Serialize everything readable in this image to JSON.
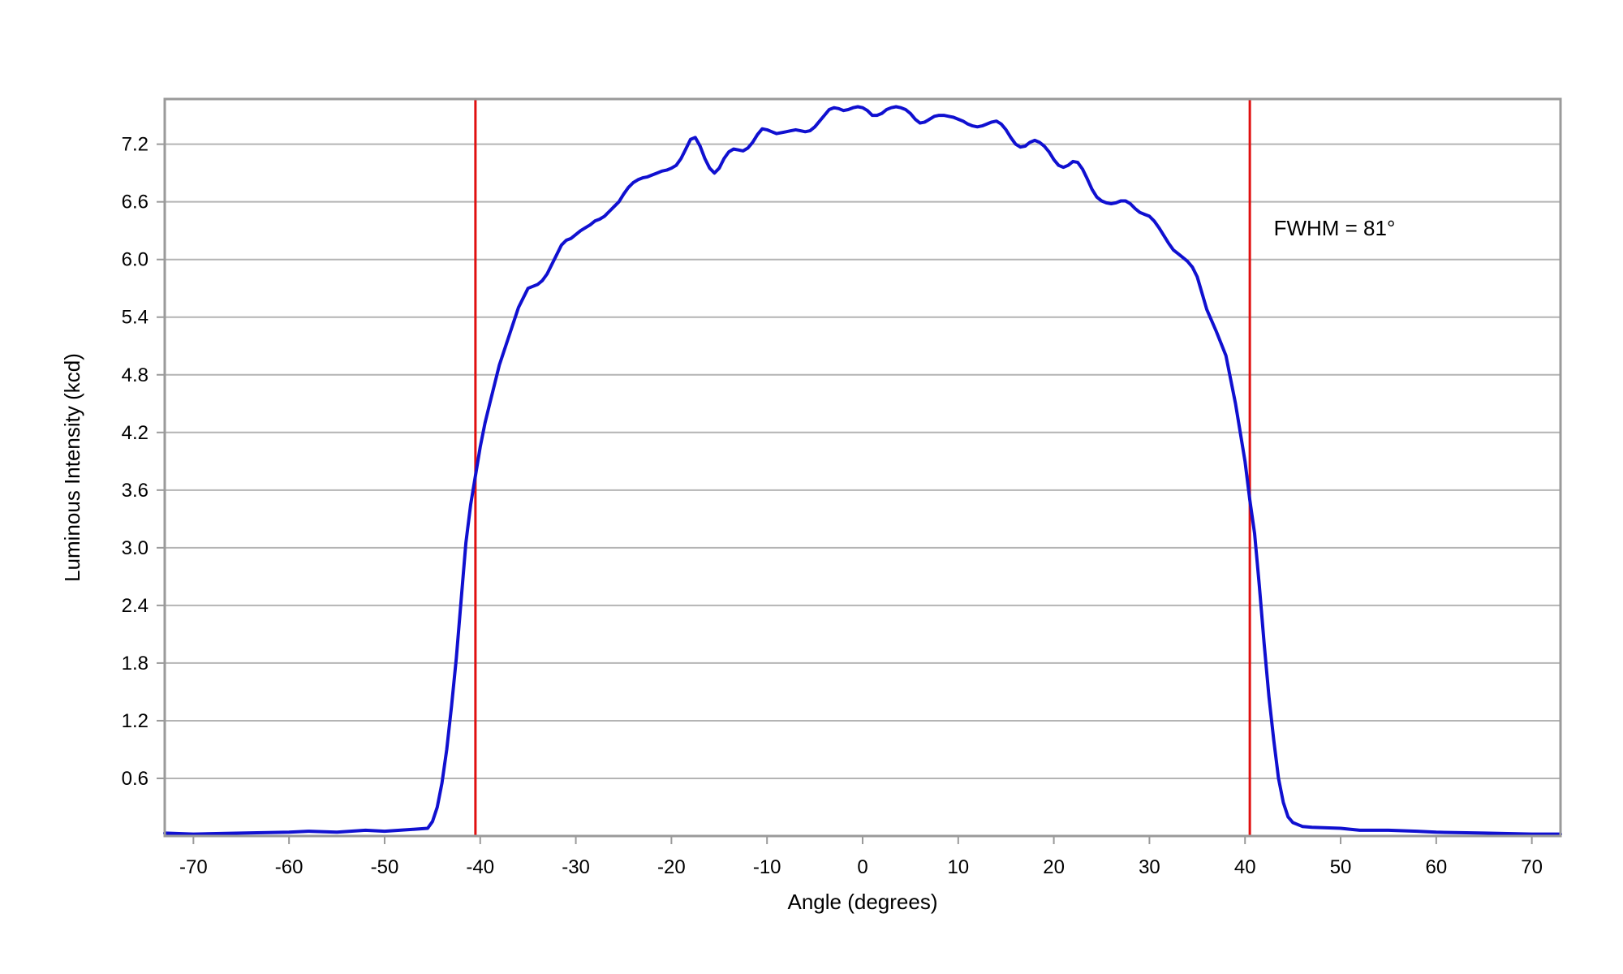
{
  "chart_data": {
    "type": "line",
    "title": "",
    "xlabel": "Angle (degrees)",
    "ylabel": "Luminous Intensity (kcd)",
    "xlim": [
      -73,
      73
    ],
    "ylim": [
      0,
      7.67
    ],
    "grid": true,
    "legend": "none",
    "x_ticks": [
      {
        "value": -70,
        "label": "-70"
      },
      {
        "value": -60,
        "label": "-60"
      },
      {
        "value": -50,
        "label": "-50"
      },
      {
        "value": -40,
        "label": "-40"
      },
      {
        "value": -30,
        "label": "-30"
      },
      {
        "value": -20,
        "label": "-20"
      },
      {
        "value": -10,
        "label": "-10"
      },
      {
        "value": 0,
        "label": "0"
      },
      {
        "value": 10,
        "label": "10"
      },
      {
        "value": 20,
        "label": "20"
      },
      {
        "value": 30,
        "label": "30"
      },
      {
        "value": 40,
        "label": "40"
      },
      {
        "value": 50,
        "label": "50"
      },
      {
        "value": 60,
        "label": "60"
      },
      {
        "value": 70,
        "label": "70"
      }
    ],
    "y_ticks": [
      {
        "value": 0.6,
        "label": "0.6"
      },
      {
        "value": 1.2,
        "label": "1.2"
      },
      {
        "value": 1.8,
        "label": "1.8"
      },
      {
        "value": 2.4,
        "label": "2.4"
      },
      {
        "value": 3.0,
        "label": "3.0"
      },
      {
        "value": 3.6,
        "label": "3.6"
      },
      {
        "value": 4.2,
        "label": "4.2"
      },
      {
        "value": 4.8,
        "label": "4.8"
      },
      {
        "value": 5.4,
        "label": "5.4"
      },
      {
        "value": 6.0,
        "label": "6.0"
      },
      {
        "value": 6.6,
        "label": "6.6"
      },
      {
        "value": 7.2,
        "label": "7.2"
      }
    ],
    "series": [
      {
        "color": "#1010d0",
        "x": [
          -73,
          -70,
          -65,
          -60,
          -58,
          -55,
          -52,
          -50,
          -47,
          -45.5,
          -45,
          -44.5,
          -44,
          -43.5,
          -43,
          -42.5,
          -42,
          -41.5,
          -41,
          -40.5,
          -40,
          -39.5,
          -39,
          -38,
          -37,
          -36,
          -35,
          -34.5,
          -34,
          -33.5,
          -33,
          -32.5,
          -32,
          -31.5,
          -31,
          -30.5,
          -30,
          -29.5,
          -29,
          -28.5,
          -28,
          -27.5,
          -27,
          -26.5,
          -26,
          -25.5,
          -25,
          -24.5,
          -24,
          -23.5,
          -23,
          -22.5,
          -22,
          -21.5,
          -21,
          -20.5,
          -20,
          -19.5,
          -19,
          -18.5,
          -18,
          -17.5,
          -17,
          -16.5,
          -16,
          -15.5,
          -15,
          -14.5,
          -14,
          -13.5,
          -13,
          -12.5,
          -12,
          -11.5,
          -11,
          -10.5,
          -10,
          -9.5,
          -9,
          -8.5,
          -8,
          -7.5,
          -7,
          -6.5,
          -6,
          -5.5,
          -5,
          -4.5,
          -4,
          -3.5,
          -3,
          -2.5,
          -2,
          -1.5,
          -1,
          -0.5,
          0,
          0.5,
          1,
          1.5,
          2,
          2.5,
          3,
          3.5,
          4,
          4.5,
          5,
          5.5,
          6,
          6.5,
          7,
          7.5,
          8,
          8.5,
          9,
          9.5,
          10,
          10.5,
          11,
          11.5,
          12,
          12.5,
          13,
          13.5,
          14,
          14.5,
          15,
          15.5,
          16,
          16.5,
          17,
          17.5,
          18,
          18.5,
          19,
          19.5,
          20,
          20.5,
          21,
          21.5,
          22,
          22.5,
          23,
          23.5,
          24,
          24.5,
          25,
          25.5,
          26,
          26.5,
          27,
          27.5,
          28,
          28.5,
          29,
          29.5,
          30,
          30.5,
          31,
          31.5,
          32,
          32.5,
          33,
          33.5,
          34,
          34.5,
          35,
          35.5,
          36,
          37,
          38,
          39,
          40,
          40.5,
          41,
          41.5,
          42,
          42.5,
          43,
          43.5,
          44,
          44.5,
          45,
          45.5,
          46,
          47,
          50,
          52,
          55,
          58,
          60,
          65,
          70,
          73
        ],
        "y": [
          0.03,
          0.02,
          0.03,
          0.04,
          0.05,
          0.04,
          0.06,
          0.05,
          0.07,
          0.08,
          0.15,
          0.3,
          0.55,
          0.9,
          1.35,
          1.85,
          2.45,
          3.05,
          3.45,
          3.75,
          4.05,
          4.3,
          4.5,
          4.9,
          5.2,
          5.5,
          5.7,
          5.72,
          5.74,
          5.78,
          5.85,
          5.95,
          6.05,
          6.15,
          6.2,
          6.22,
          6.26,
          6.3,
          6.33,
          6.36,
          6.4,
          6.42,
          6.45,
          6.5,
          6.55,
          6.6,
          6.68,
          6.75,
          6.8,
          6.83,
          6.85,
          6.86,
          6.88,
          6.9,
          6.92,
          6.93,
          6.95,
          6.98,
          7.05,
          7.15,
          7.25,
          7.27,
          7.18,
          7.05,
          6.95,
          6.9,
          6.95,
          7.05,
          7.12,
          7.15,
          7.14,
          7.13,
          7.16,
          7.22,
          7.3,
          7.36,
          7.35,
          7.33,
          7.31,
          7.32,
          7.33,
          7.34,
          7.35,
          7.34,
          7.33,
          7.34,
          7.38,
          7.44,
          7.5,
          7.56,
          7.58,
          7.57,
          7.55,
          7.56,
          7.58,
          7.59,
          7.58,
          7.55,
          7.5,
          7.5,
          7.52,
          7.56,
          7.58,
          7.59,
          7.58,
          7.56,
          7.52,
          7.46,
          7.42,
          7.43,
          7.46,
          7.49,
          7.5,
          7.5,
          7.49,
          7.48,
          7.46,
          7.44,
          7.41,
          7.39,
          7.38,
          7.39,
          7.41,
          7.43,
          7.44,
          7.41,
          7.35,
          7.27,
          7.2,
          7.17,
          7.18,
          7.22,
          7.24,
          7.22,
          7.18,
          7.12,
          7.04,
          6.98,
          6.96,
          6.98,
          7.02,
          7.01,
          6.94,
          6.84,
          6.73,
          6.65,
          6.61,
          6.59,
          6.58,
          6.59,
          6.61,
          6.61,
          6.58,
          6.53,
          6.49,
          6.47,
          6.45,
          6.4,
          6.33,
          6.25,
          6.17,
          6.1,
          6.06,
          6.02,
          5.98,
          5.92,
          5.82,
          5.65,
          5.48,
          5.25,
          5.0,
          4.5,
          3.9,
          3.5,
          3.15,
          2.6,
          2.0,
          1.45,
          1.0,
          0.6,
          0.35,
          0.2,
          0.14,
          0.12,
          0.1,
          0.09,
          0.08,
          0.06,
          0.06,
          0.05,
          0.04,
          0.03,
          0.02,
          0.02
        ]
      }
    ],
    "vertical_lines": [
      {
        "x": -40.5,
        "color": "#e01010"
      },
      {
        "x": 40.5,
        "color": "#e01010"
      }
    ],
    "annotations": [
      {
        "text": "FWHM = 81°",
        "x": 43,
        "y": 6.25
      }
    ]
  }
}
